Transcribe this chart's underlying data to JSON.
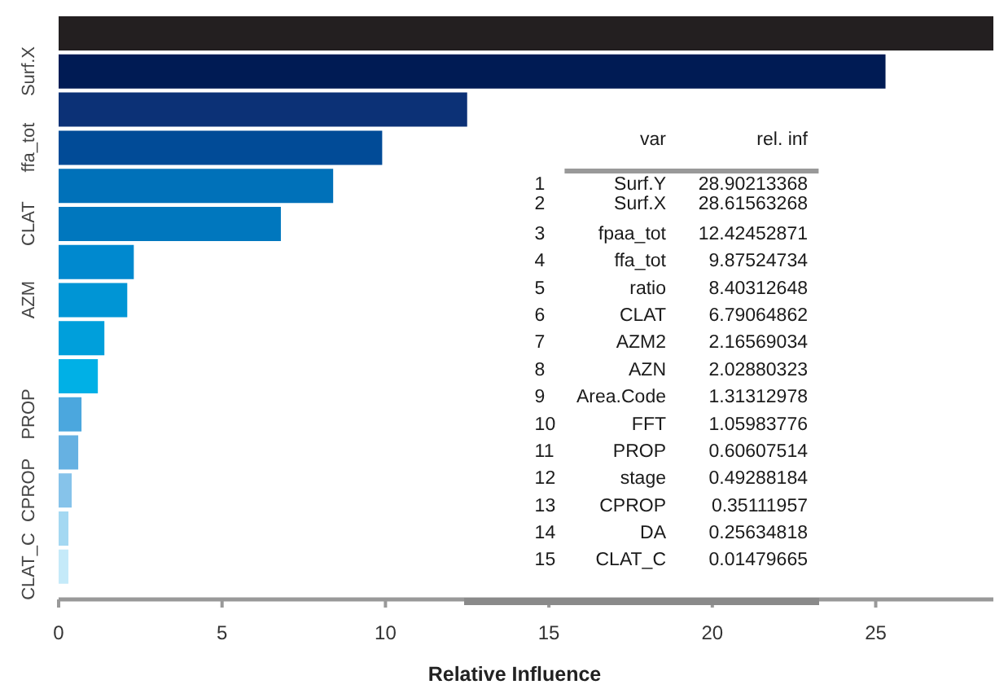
{
  "chart_data": {
    "type": "bar",
    "orientation": "horizontal",
    "xlabel": "Relative Influence",
    "categories": [
      null,
      "Surf.X",
      null,
      "ffa_tot",
      null,
      "CLAT",
      null,
      "AZM",
      null,
      null,
      "PROP",
      null,
      "CPROP",
      null,
      "CLAT_C"
    ],
    "values": [
      28.6,
      25.3,
      12.5,
      9.9,
      8.4,
      6.8,
      2.3,
      2.1,
      1.4,
      1.2,
      0.7,
      0.6,
      0.4,
      0.3,
      0.3
    ],
    "colors": [
      "#231f20",
      "#001b54",
      "#0c3176",
      "#014b97",
      "#0071b9",
      "#0077be",
      "#0089cf",
      "#0095d5",
      "#009fdb",
      "#00b0e6",
      "#4ba7de",
      "#66b1e2",
      "#86c3ea",
      "#a4d8f2",
      "#c5eaf9"
    ],
    "xlim": [
      0,
      28.6
    ],
    "xticks": [
      0,
      5,
      10,
      15,
      20,
      25
    ],
    "annotations": [
      "var",
      "rel. inf",
      "1",
      "Surf.Y",
      "28.90213368",
      "2",
      "Surf.X",
      "28.61563268",
      "3",
      "fpaa_tot",
      "12.42452871",
      "4",
      "ffa_tot",
      "9.87524734",
      "5",
      "ratio",
      "8.40312648",
      "6",
      "CLAT",
      "6.79064862",
      "7",
      "AZM2",
      "2.16569034",
      "8",
      "AZN",
      "2.02880323",
      "9",
      "Area.Code",
      "1.31312978",
      "10",
      "FFT",
      "1.05983776",
      "11",
      "PROP",
      "0.60607514",
      "12",
      "stage",
      "0.49288184",
      "13",
      "CPROP",
      "0.35111957",
      "14",
      "DA",
      "0.25634818",
      "15",
      "CLAT_C",
      "0.01479665"
    ]
  }
}
